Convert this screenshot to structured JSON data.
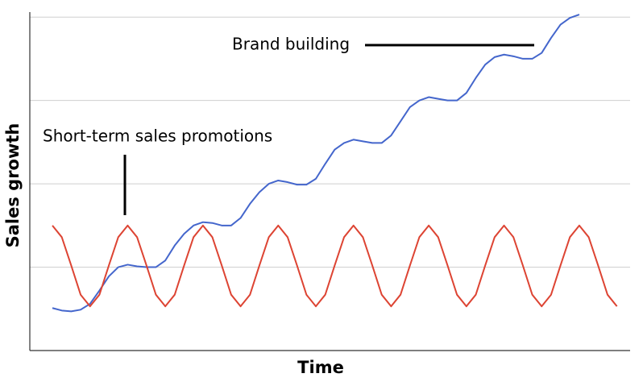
{
  "chart_data": {
    "type": "line",
    "x_label": "Time",
    "y_label": "Sales growth",
    "annotations": [
      "Brand building",
      "Short-term sales promotions"
    ],
    "x": [
      0,
      1,
      2,
      3,
      4,
      5,
      6,
      7,
      8,
      9,
      10,
      11,
      12,
      13,
      14,
      15,
      16,
      17,
      18,
      19,
      20,
      21,
      22,
      23,
      24,
      25,
      26,
      27,
      28,
      29,
      30,
      31,
      32,
      33,
      34,
      35,
      36,
      37,
      38,
      39,
      40,
      41,
      42,
      43,
      44,
      45,
      46,
      47,
      48,
      49,
      50,
      51,
      52,
      53,
      54,
      55,
      56,
      57,
      58,
      59,
      60
    ],
    "series": [
      {
        "color": "#4466cc",
        "values": [
          0.51,
          0.48,
          0.47,
          0.49,
          0.56,
          0.72,
          0.89,
          1.0,
          1.03,
          1.01,
          1.0,
          1.0,
          1.08,
          1.26,
          1.4,
          1.5,
          1.54,
          1.53,
          1.5,
          1.5,
          1.59,
          1.76,
          1.9,
          2.0,
          2.04,
          2.02,
          1.99,
          1.99,
          2.06,
          2.24,
          2.41,
          2.49,
          2.53,
          2.51,
          2.49,
          2.49,
          2.58,
          2.75,
          2.92,
          3.0,
          3.04,
          3.02,
          3.0,
          3.0,
          3.09,
          3.27,
          3.43,
          3.52,
          3.55,
          3.53,
          3.5,
          3.5,
          3.57,
          3.75,
          3.91,
          3.99,
          4.03,
          null,
          null,
          null,
          null
        ]
      },
      {
        "color": "#dd4433",
        "values": [
          1.5,
          1.36,
          1.02,
          0.67,
          0.53,
          0.67,
          1.02,
          1.36,
          1.5,
          1.36,
          1.02,
          0.67,
          0.53,
          0.67,
          1.02,
          1.36,
          1.5,
          1.36,
          1.02,
          0.67,
          0.53,
          0.67,
          1.02,
          1.36,
          1.5,
          1.36,
          1.02,
          0.67,
          0.53,
          0.67,
          1.02,
          1.36,
          1.5,
          1.36,
          1.02,
          0.67,
          0.53,
          0.67,
          1.02,
          1.36,
          1.5,
          1.36,
          1.02,
          0.67,
          0.53,
          0.67,
          1.02,
          1.36,
          1.5,
          1.36,
          1.02,
          0.67,
          0.53,
          0.67,
          1.02,
          1.36,
          1.5,
          1.36,
          1.02,
          0.67,
          0.53
        ]
      }
    ],
    "xlim": [
      -2.4,
      61.4
    ],
    "ylim": [
      0,
      4.06
    ],
    "yticks": [
      1,
      2,
      3,
      4
    ],
    "grid": true
  }
}
